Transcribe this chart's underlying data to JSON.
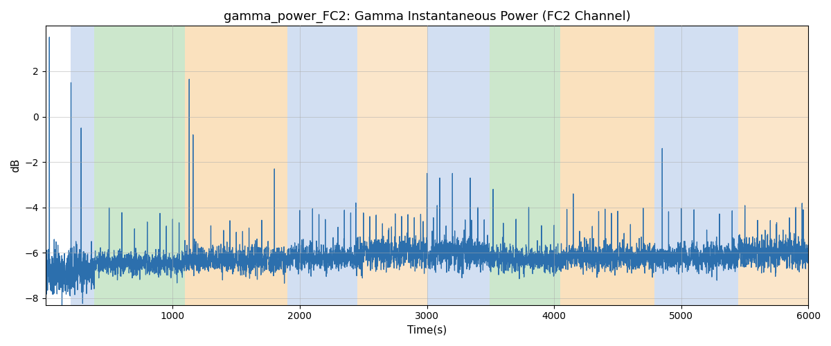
{
  "title": "gamma_power_FC2: Gamma Instantaneous Power (FC2 Channel)",
  "xlabel": "Time(s)",
  "ylabel": "dB",
  "xlim": [
    0,
    6000
  ],
  "ylim": [
    -8.3,
    4.0
  ],
  "yticks": [
    -8,
    -6,
    -4,
    -2,
    0,
    2
  ],
  "xticks": [
    1000,
    2000,
    3000,
    4000,
    5000,
    6000
  ],
  "line_color": "#2c6fad",
  "line_width": 0.9,
  "background_color": "#ffffff",
  "grid_color": "#aaaaaa",
  "title_fontsize": 13,
  "label_fontsize": 11,
  "figsize": [
    12,
    5
  ],
  "dpi": 100,
  "bands": [
    {
      "xmin": 195,
      "xmax": 385,
      "color": "#aec6e8",
      "alpha": 0.55
    },
    {
      "xmin": 385,
      "xmax": 1095,
      "color": "#a2d4a2",
      "alpha": 0.55
    },
    {
      "xmin": 1095,
      "xmax": 1900,
      "color": "#f7c98a",
      "alpha": 0.55
    },
    {
      "xmin": 1900,
      "xmax": 2450,
      "color": "#aec6e8",
      "alpha": 0.55
    },
    {
      "xmin": 2450,
      "xmax": 3000,
      "color": "#f7c98a",
      "alpha": 0.45
    },
    {
      "xmin": 3000,
      "xmax": 3490,
      "color": "#aec6e8",
      "alpha": 0.55
    },
    {
      "xmin": 3490,
      "xmax": 4050,
      "color": "#a2d4a2",
      "alpha": 0.55
    },
    {
      "xmin": 4050,
      "xmax": 4790,
      "color": "#f7c98a",
      "alpha": 0.55
    },
    {
      "xmin": 4790,
      "xmax": 5450,
      "color": "#aec6e8",
      "alpha": 0.55
    },
    {
      "xmin": 5450,
      "xmax": 6000,
      "color": "#f7c98a",
      "alpha": 0.45
    }
  ]
}
